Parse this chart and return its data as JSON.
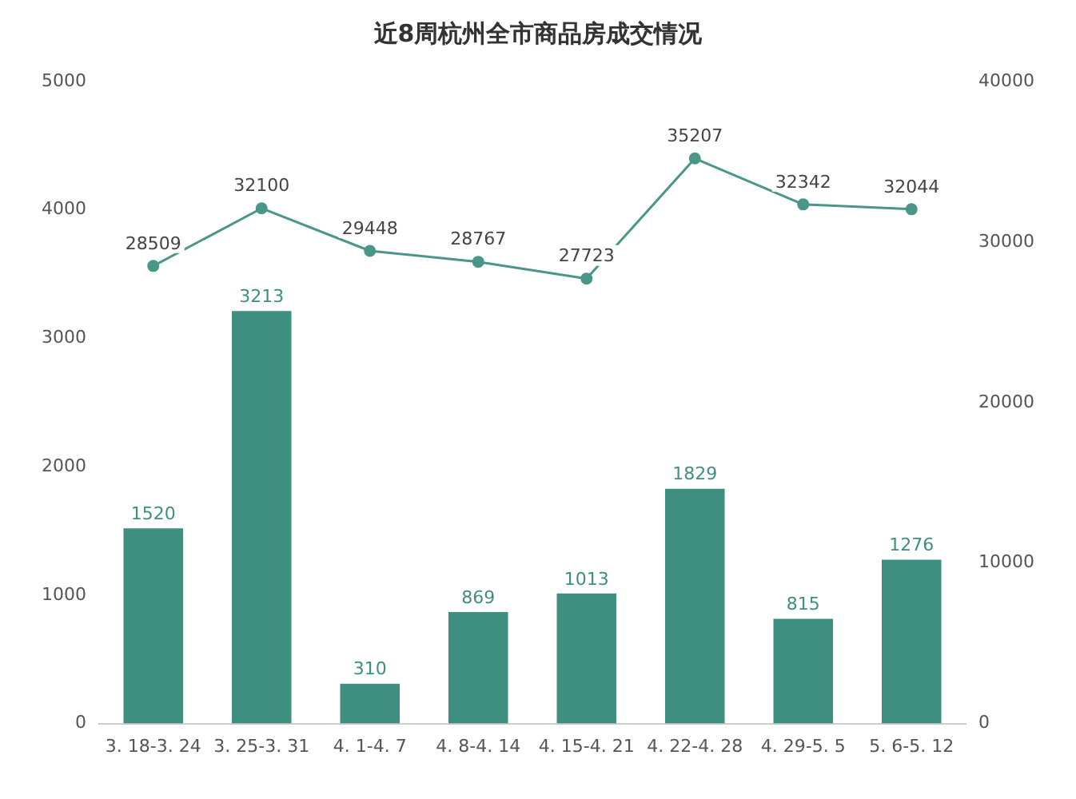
{
  "chart_data": {
    "type": "bar",
    "title": "近8周杭州全市商品房成交情况",
    "categories": [
      "3. 18-3. 24",
      "3. 25-3. 31",
      "4. 1-4. 7",
      "4. 8-4. 14",
      "4. 15-4. 21",
      "4. 22-4. 28",
      "4. 29-5. 5",
      "5. 6-5. 12"
    ],
    "series": [
      {
        "color": "#3f8f80",
        "values": [
          1520,
          3213,
          310,
          869,
          1013,
          1829,
          815,
          1276
        ]
      },
      {
        "type": "line",
        "axis": "y2",
        "color": "#4a9688",
        "values": [
          28509,
          32100,
          29448,
          28767,
          27723,
          35207,
          32342,
          32044
        ]
      }
    ],
    "ylim": [
      0,
      5000
    ],
    "yticks": [
      0,
      1000,
      2000,
      3000,
      4000,
      5000
    ],
    "y2lim": [
      0,
      40000
    ],
    "y2ticks": [
      0,
      10000,
      20000,
      30000,
      40000
    ],
    "data_labels": true,
    "grid": false,
    "legend": false,
    "marker": "circle",
    "line_style": "solid"
  }
}
